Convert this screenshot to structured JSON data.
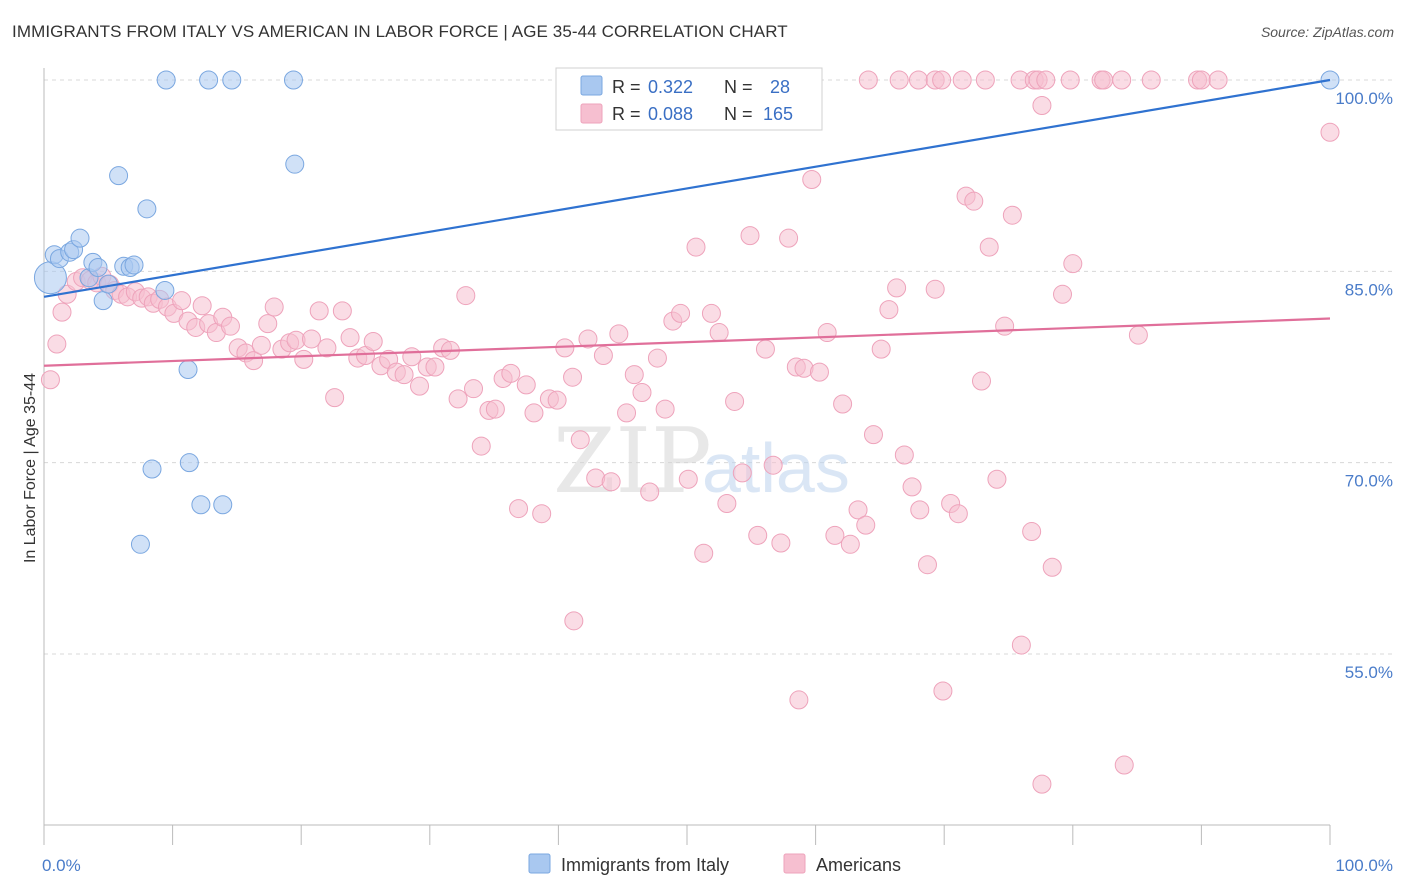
{
  "title": "IMMIGRANTS FROM ITALY VS AMERICAN IN LABOR FORCE | AGE 35-44 CORRELATION CHART",
  "source": "Source: ZipAtlas.com",
  "watermark": {
    "zip": "ZIP",
    "atlas": "atlas"
  },
  "colors": {
    "blue_fill": "#a9c8f0",
    "blue_stroke": "#7aa7e0",
    "blue_line": "#2f72d0",
    "pink_fill": "#f6bfd0",
    "pink_stroke": "#eea3bb",
    "pink_line": "#e06f9a",
    "grid": "#d8d8d8",
    "axis_label": "#4a7cc9"
  },
  "legend": {
    "rows": [
      {
        "r_label": "R =",
        "r_value": "0.322",
        "n_label": "N =",
        "n_value": "28"
      },
      {
        "r_label": "R =",
        "r_value": "0.088",
        "n_label": "N =",
        "n_value": "165"
      }
    ]
  },
  "bottom_legend": [
    "Immigrants from Italy",
    "Americans"
  ],
  "chart_data": {
    "type": "scatter",
    "title": "IMMIGRANTS FROM ITALY VS AMERICAN IN LABOR FORCE | AGE 35-44 CORRELATION CHART",
    "xlabel": "",
    "ylabel": "In Labor Force | Age 35-44",
    "xlim": [
      0,
      100
    ],
    "ylim": [
      40,
      101
    ],
    "x_tick_labels": [
      "0.0%",
      "100.0%"
    ],
    "y_ticks": [
      55,
      70,
      85,
      100
    ],
    "y_tick_labels": [
      "55.0%",
      "70.0%",
      "85.0%",
      "100.0%"
    ],
    "grid": true,
    "legend_position": "top-center",
    "series": [
      {
        "name": "Immigrants from Italy",
        "color": "#a9c8f0",
        "trend": {
          "x": [
            0,
            100
          ],
          "y": [
            83.0,
            100.0
          ]
        },
        "points": [
          [
            0.5,
            84.5
          ],
          [
            0.8,
            86.3
          ],
          [
            1.2,
            86.0
          ],
          [
            2.0,
            86.5
          ],
          [
            2.3,
            86.7
          ],
          [
            2.8,
            87.6
          ],
          [
            3.5,
            84.5
          ],
          [
            3.8,
            85.7
          ],
          [
            4.2,
            85.3
          ],
          [
            4.6,
            82.7
          ],
          [
            5.0,
            84.0
          ],
          [
            6.2,
            85.4
          ],
          [
            6.7,
            85.3
          ],
          [
            7.0,
            85.5
          ],
          [
            5.8,
            92.5
          ],
          [
            8.0,
            89.9
          ],
          [
            9.4,
            83.5
          ],
          [
            9.5,
            100.0
          ],
          [
            12.8,
            100.0
          ],
          [
            14.6,
            100.0
          ],
          [
            19.4,
            100.0
          ],
          [
            19.5,
            93.4
          ],
          [
            11.2,
            77.3
          ],
          [
            8.4,
            69.5
          ],
          [
            11.3,
            70.0
          ],
          [
            12.2,
            66.7
          ],
          [
            13.9,
            66.7
          ],
          [
            7.5,
            63.6
          ],
          [
            100.0,
            100.0
          ]
        ]
      },
      {
        "name": "Americans",
        "color": "#f6bfd0",
        "trend": {
          "x": [
            0,
            100
          ],
          "y": [
            77.6,
            81.3
          ]
        },
        "points": [
          [
            0.5,
            76.5
          ],
          [
            1.0,
            79.3
          ],
          [
            1.4,
            81.8
          ],
          [
            1.8,
            83.2
          ],
          [
            2.5,
            84.2
          ],
          [
            3.0,
            84.5
          ],
          [
            3.6,
            84.3
          ],
          [
            4.1,
            84.1
          ],
          [
            4.5,
            84.6
          ],
          [
            5.1,
            84.0
          ],
          [
            5.5,
            83.5
          ],
          [
            6.0,
            83.2
          ],
          [
            6.5,
            83.0
          ],
          [
            7.1,
            83.4
          ],
          [
            7.6,
            82.9
          ],
          [
            8.1,
            83.0
          ],
          [
            8.5,
            82.5
          ],
          [
            9.0,
            82.8
          ],
          [
            9.6,
            82.2
          ],
          [
            10.1,
            81.7
          ],
          [
            10.7,
            82.7
          ],
          [
            11.2,
            81.1
          ],
          [
            11.8,
            80.6
          ],
          [
            12.3,
            82.3
          ],
          [
            12.8,
            80.9
          ],
          [
            13.4,
            80.2
          ],
          [
            13.9,
            81.4
          ],
          [
            14.5,
            80.7
          ],
          [
            15.1,
            79.0
          ],
          [
            15.7,
            78.6
          ],
          [
            16.3,
            78.0
          ],
          [
            16.9,
            79.2
          ],
          [
            17.4,
            80.9
          ],
          [
            17.9,
            82.2
          ],
          [
            18.5,
            78.9
          ],
          [
            19.1,
            79.4
          ],
          [
            19.6,
            79.6
          ],
          [
            20.2,
            78.1
          ],
          [
            20.8,
            79.7
          ],
          [
            21.4,
            81.9
          ],
          [
            22.0,
            79.0
          ],
          [
            22.6,
            75.1
          ],
          [
            23.2,
            81.9
          ],
          [
            23.8,
            79.8
          ],
          [
            24.4,
            78.2
          ],
          [
            25.0,
            78.4
          ],
          [
            25.6,
            79.5
          ],
          [
            26.2,
            77.6
          ],
          [
            26.8,
            78.1
          ],
          [
            27.4,
            77.1
          ],
          [
            28.0,
            76.9
          ],
          [
            28.6,
            78.3
          ],
          [
            29.2,
            76.0
          ],
          [
            29.8,
            77.5
          ],
          [
            30.4,
            77.5
          ],
          [
            31.0,
            79.0
          ],
          [
            31.6,
            78.8
          ],
          [
            32.2,
            75.0
          ],
          [
            32.8,
            83.1
          ],
          [
            33.4,
            75.8
          ],
          [
            34.0,
            71.3
          ],
          [
            34.6,
            74.1
          ],
          [
            35.1,
            74.2
          ],
          [
            35.7,
            76.6
          ],
          [
            36.3,
            77.0
          ],
          [
            36.9,
            66.4
          ],
          [
            37.5,
            76.1
          ],
          [
            38.1,
            73.9
          ],
          [
            38.7,
            66.0
          ],
          [
            39.3,
            75.0
          ],
          [
            39.9,
            74.9
          ],
          [
            40.5,
            79.0
          ],
          [
            41.1,
            76.7
          ],
          [
            41.7,
            71.8
          ],
          [
            42.3,
            79.7
          ],
          [
            42.9,
            68.8
          ],
          [
            43.5,
            78.4
          ],
          [
            44.1,
            68.5
          ],
          [
            44.7,
            80.1
          ],
          [
            45.3,
            73.9
          ],
          [
            45.9,
            76.9
          ],
          [
            46.5,
            75.5
          ],
          [
            47.1,
            67.7
          ],
          [
            47.7,
            78.2
          ],
          [
            48.3,
            74.2
          ],
          [
            48.9,
            81.1
          ],
          [
            49.5,
            81.7
          ],
          [
            50.1,
            68.7
          ],
          [
            50.7,
            86.9
          ],
          [
            51.3,
            62.9
          ],
          [
            51.9,
            81.7
          ],
          [
            52.5,
            80.2
          ],
          [
            53.1,
            66.8
          ],
          [
            53.7,
            74.8
          ],
          [
            54.3,
            69.2
          ],
          [
            54.9,
            87.8
          ],
          [
            55.5,
            64.3
          ],
          [
            56.1,
            78.9
          ],
          [
            56.7,
            69.8
          ],
          [
            57.3,
            63.7
          ],
          [
            57.9,
            87.6
          ],
          [
            58.5,
            77.5
          ],
          [
            59.1,
            77.4
          ],
          [
            59.7,
            92.2
          ],
          [
            60.3,
            77.1
          ],
          [
            60.9,
            80.2
          ],
          [
            61.5,
            64.3
          ],
          [
            62.1,
            74.6
          ],
          [
            62.7,
            63.6
          ],
          [
            63.3,
            66.3
          ],
          [
            63.9,
            65.1
          ],
          [
            64.5,
            72.2
          ],
          [
            65.1,
            78.9
          ],
          [
            65.7,
            82.0
          ],
          [
            66.3,
            83.7
          ],
          [
            66.9,
            70.6
          ],
          [
            67.5,
            68.1
          ],
          [
            68.1,
            66.3
          ],
          [
            68.7,
            62.0
          ],
          [
            69.3,
            83.6
          ],
          [
            69.9,
            52.1
          ],
          [
            70.5,
            66.8
          ],
          [
            71.1,
            66.0
          ],
          [
            71.7,
            90.9
          ],
          [
            72.3,
            90.5
          ],
          [
            72.9,
            76.4
          ],
          [
            73.5,
            86.9
          ],
          [
            74.1,
            68.7
          ],
          [
            74.7,
            80.7
          ],
          [
            75.3,
            89.4
          ],
          [
            76.0,
            55.7
          ],
          [
            76.8,
            64.6
          ],
          [
            77.6,
            98.0
          ],
          [
            78.4,
            61.8
          ],
          [
            79.2,
            83.2
          ],
          [
            80.0,
            85.6
          ],
          [
            41.2,
            57.6
          ],
          [
            58.7,
            51.4
          ],
          [
            77.6,
            44.8
          ],
          [
            84.0,
            46.3
          ],
          [
            85.1,
            80.0
          ],
          [
            100.0,
            95.9
          ],
          [
            64.1,
            100.0
          ],
          [
            66.5,
            100.0
          ],
          [
            68.0,
            100.0
          ],
          [
            69.3,
            100.0
          ],
          [
            69.8,
            100.0
          ],
          [
            71.4,
            100.0
          ],
          [
            73.2,
            100.0
          ],
          [
            75.9,
            100.0
          ],
          [
            77.0,
            100.0
          ],
          [
            77.3,
            100.0
          ],
          [
            77.9,
            100.0
          ],
          [
            79.8,
            100.0
          ],
          [
            82.2,
            100.0
          ],
          [
            82.4,
            100.0
          ],
          [
            83.8,
            100.0
          ],
          [
            86.1,
            100.0
          ],
          [
            89.7,
            100.0
          ],
          [
            90.0,
            100.0
          ],
          [
            91.3,
            100.0
          ]
        ]
      }
    ]
  }
}
